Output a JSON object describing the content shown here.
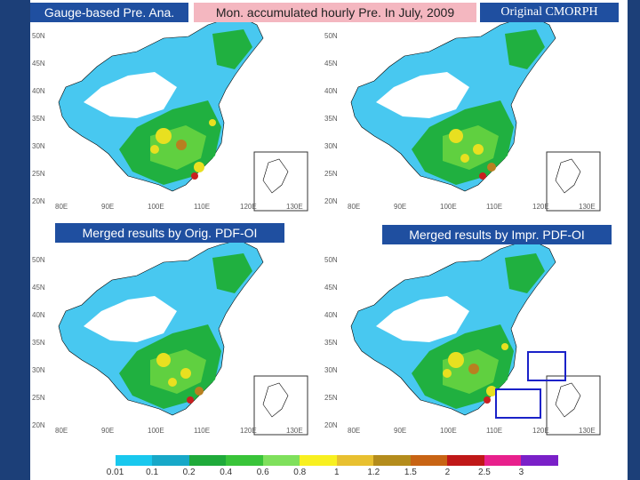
{
  "titles": {
    "gauge": "Gauge-based Pre. Ana.",
    "main": "Mon. accumulated hourly Pre. In July, 2009",
    "original": "Original CMORPH",
    "merged_orig": "Merged results by Orig. PDF-OI",
    "merged_impr": "Merged results by Impr. PDF-OI"
  },
  "latitude_labels": [
    "50N",
    "45N",
    "40N",
    "35N",
    "30N",
    "25N",
    "20N"
  ],
  "longitude_labels": [
    "80E",
    "90E",
    "100E",
    "110E",
    "120E",
    "130E"
  ],
  "colorbar": {
    "labels": [
      "0.01",
      "0.1",
      "0.2",
      "0.4",
      "0.6",
      "0.8",
      "1",
      "1.2",
      "1.5",
      "2",
      "2.5",
      "3"
    ],
    "colors": [
      "#ffffff",
      "#19c8ee",
      "#17a8c8",
      "#1faa3a",
      "#39c439",
      "#7fe05c",
      "#f8f020",
      "#e8c030",
      "#b48c1c",
      "#c86414",
      "#c01818",
      "#e8208c",
      "#7a20c8"
    ]
  },
  "map_colors": {
    "dry": "#ffffff",
    "light": "#48c8f0",
    "moderate": "#20a0c0",
    "green": "#20b040",
    "lightgreen": "#60d040",
    "yellow": "#e8e020",
    "brown": "#b88020",
    "red": "#c82020",
    "inset_border": "#333333"
  }
}
